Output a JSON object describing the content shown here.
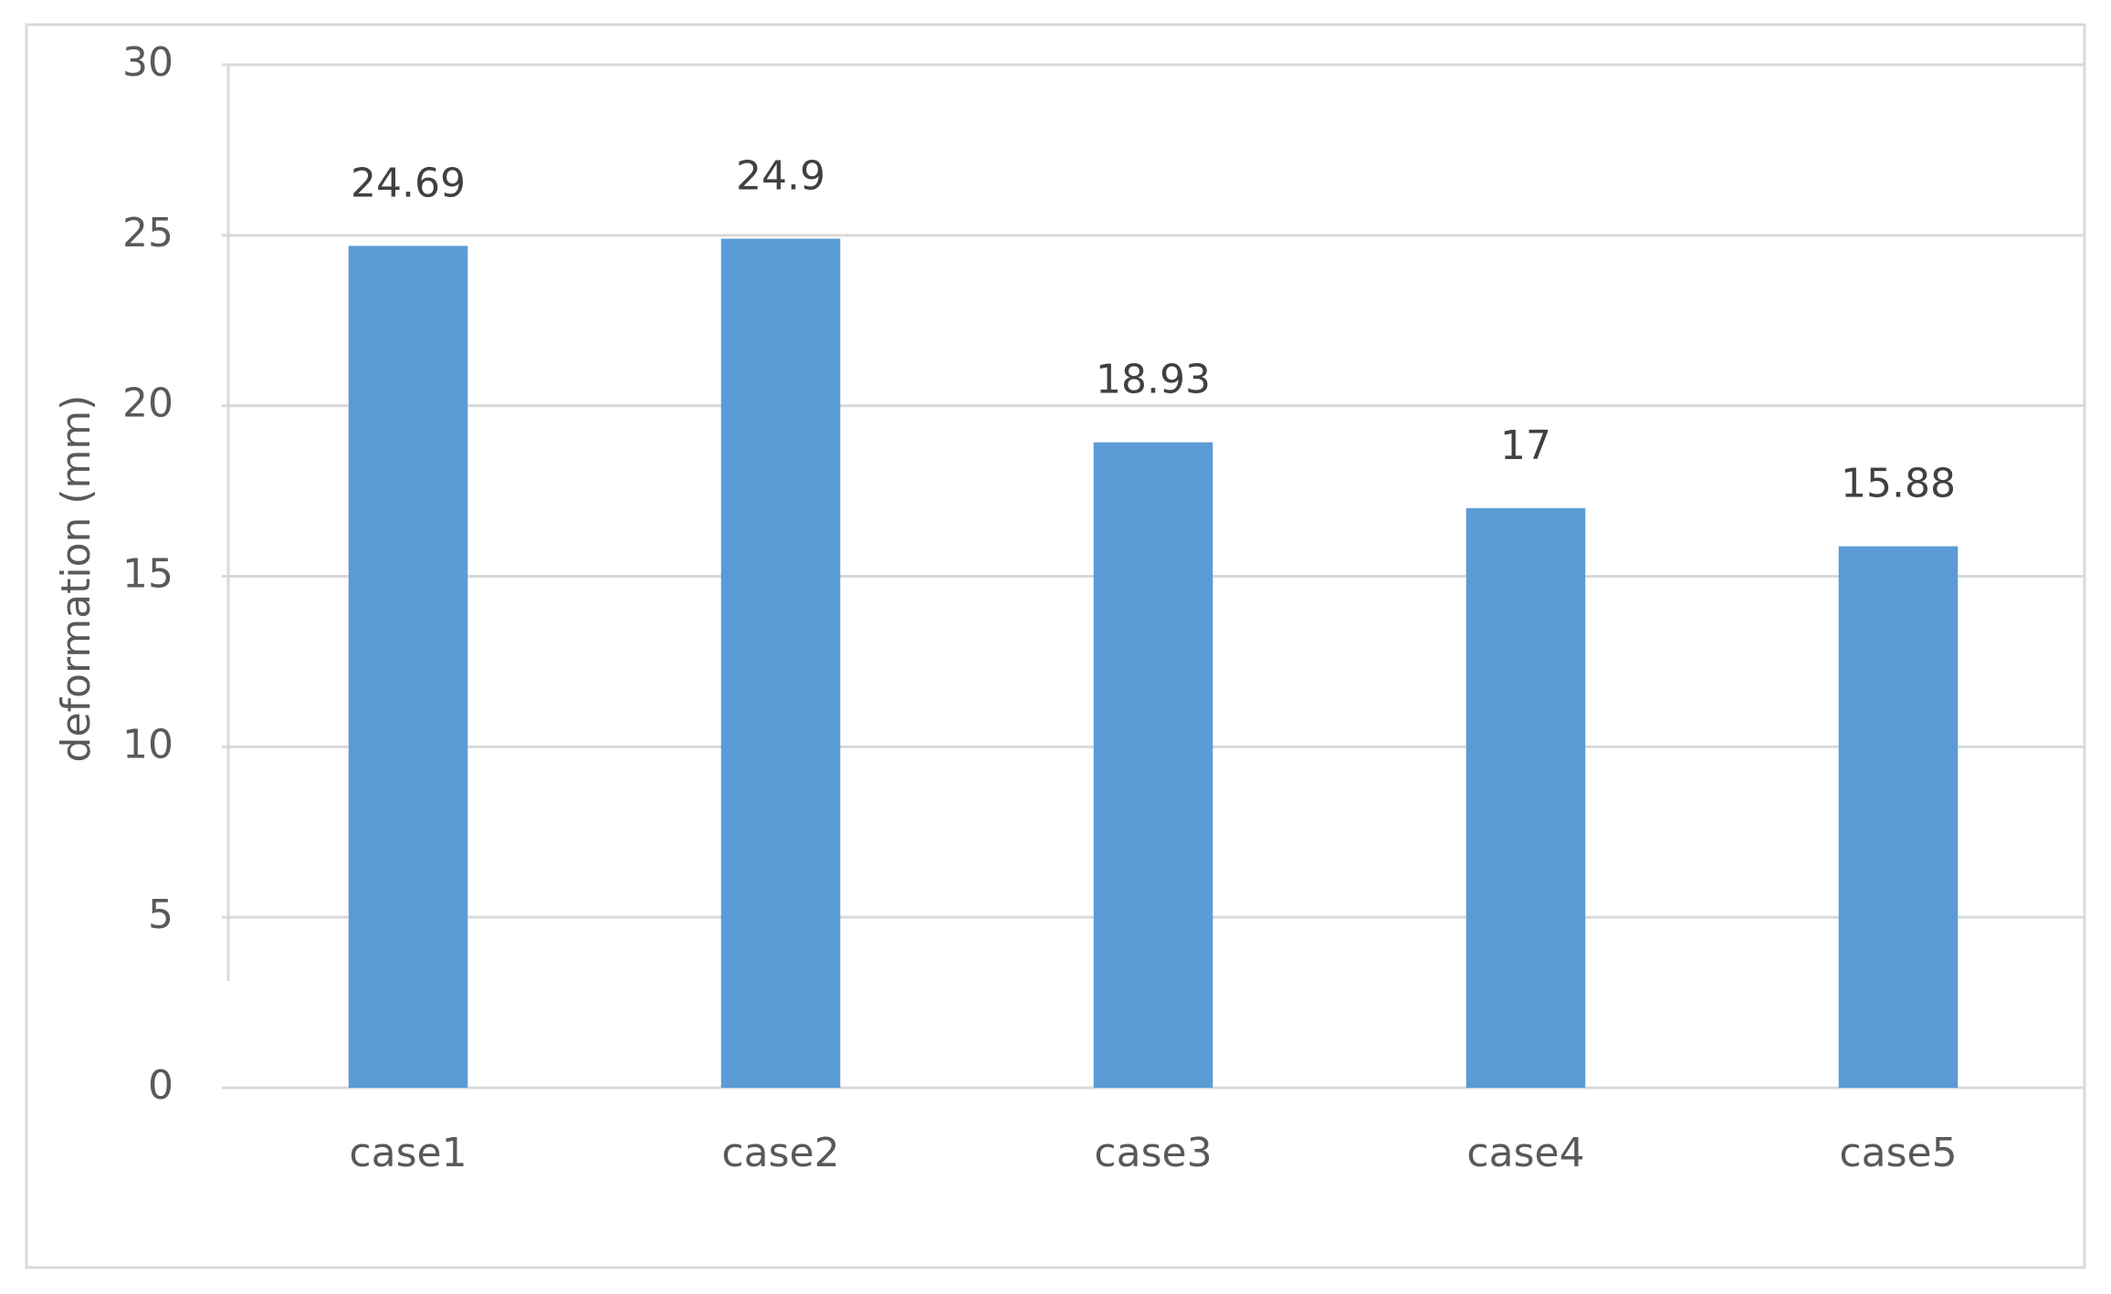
{
  "chart_data": {
    "type": "bar",
    "y_axis_label": "deformation (mm)",
    "categories": [
      "case1",
      "case2",
      "case3",
      "case4",
      "case5"
    ],
    "values": [
      24.69,
      24.9,
      18.93,
      17,
      15.88
    ],
    "color": "#5b9bd5",
    "ylim": [
      0,
      30
    ],
    "yticks": [
      0,
      5,
      10,
      15,
      20,
      25,
      30
    ],
    "grid": true
  }
}
